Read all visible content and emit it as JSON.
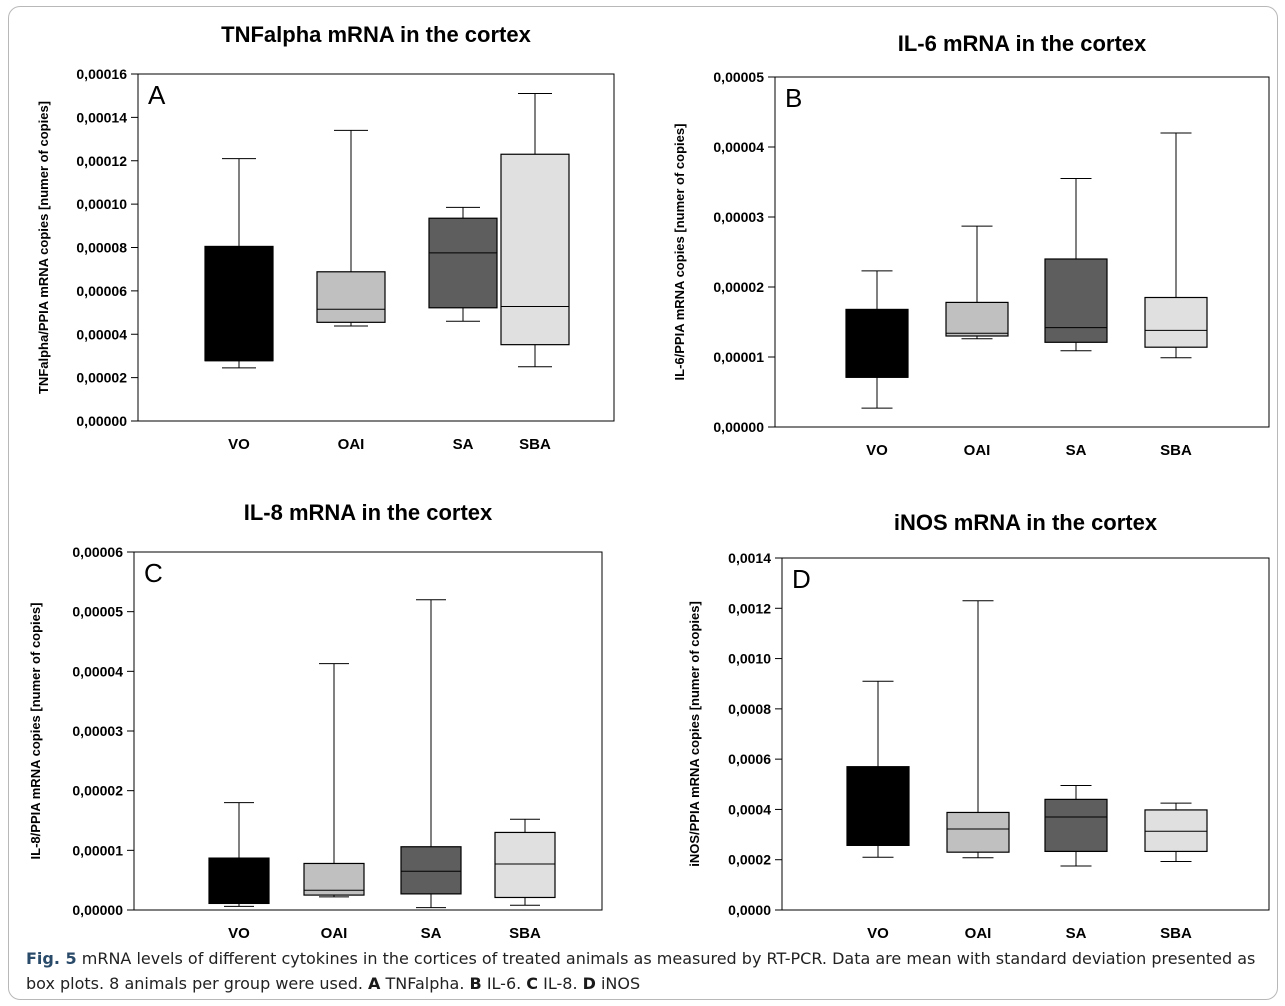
{
  "figure": {
    "caption": {
      "fig_label": "Fig. 5",
      "text_1": " mRNA levels of different cytokines in the cortices of treated animals as measured by RT-PCR. Data are mean with standard deviation presented as box plots. 8 animals per group were used. ",
      "label_a": "A",
      "text_a": " TNFalpha. ",
      "label_b": "B",
      "text_b": " IL-6. ",
      "label_c": "C",
      "text_c": " IL-8. ",
      "label_d": "D",
      "text_d": " iNOS"
    }
  },
  "colors": {
    "VO": "#000000",
    "OAI": "#c0c0c0",
    "SA": "#5e5e5e",
    "SBA": "#e0e0e0"
  },
  "chart_data": [
    {
      "type": "box",
      "panel": "A",
      "title": "TNFalpha mRNA in the cortex",
      "ylabel": "TNFalpha/PPIA mRNA copies [numer of copies]",
      "xlabel": "",
      "categories": [
        "VO",
        "OAI",
        "SA",
        "SBA"
      ],
      "ylim": [
        0,
        0.00016
      ],
      "yticks": [
        "0,00000",
        "0,00002",
        "0,00004",
        "0,00006",
        "0,00008",
        "0,00010",
        "0,00012",
        "0,00014",
        "0,00016"
      ],
      "ytick_values": [
        0,
        2e-05,
        4e-05,
        6e-05,
        8e-05,
        0.0001,
        0.00012,
        0.00014,
        0.00016
      ],
      "boxes": [
        {
          "category": "VO",
          "min": 2.45e-05,
          "q1": 2.78e-05,
          "median": 2.78e-05,
          "q3": 8.05e-05,
          "max": 0.000121
        },
        {
          "category": "OAI",
          "min": 4.38e-05,
          "q1": 4.55e-05,
          "median": 5.15e-05,
          "q3": 6.88e-05,
          "max": 0.000134
        },
        {
          "category": "SA",
          "min": 4.6e-05,
          "q1": 5.22e-05,
          "median": 7.75e-05,
          "q3": 9.35e-05,
          "max": 9.85e-05
        },
        {
          "category": "SBA",
          "min": 2.5e-05,
          "q1": 3.52e-05,
          "median": 5.28e-05,
          "q3": 0.000123,
          "max": 0.000151
        }
      ],
      "grid": false,
      "legend": "none"
    },
    {
      "type": "box",
      "panel": "B",
      "title": "IL-6 mRNA in the cortex",
      "ylabel": "IL-6/PPIA mRNA copies [numer of copies]",
      "xlabel": "",
      "categories": [
        "VO",
        "OAI",
        "SA",
        "SBA"
      ],
      "ylim": [
        0,
        5e-05
      ],
      "yticks": [
        "0,00000",
        "0,00001",
        "0,00002",
        "0,00003",
        "0,00004",
        "0,00005"
      ],
      "ytick_values": [
        0,
        1e-05,
        2e-05,
        3e-05,
        4e-05,
        5e-05
      ],
      "boxes": [
        {
          "category": "VO",
          "min": 2.7e-06,
          "q1": 7.1e-06,
          "median": 7.1e-06,
          "q3": 1.68e-05,
          "max": 2.23e-05
        },
        {
          "category": "OAI",
          "min": 1.26e-05,
          "q1": 1.3e-05,
          "median": 1.34e-05,
          "q3": 1.78e-05,
          "max": 2.87e-05
        },
        {
          "category": "SA",
          "min": 1.09e-05,
          "q1": 1.21e-05,
          "median": 1.42e-05,
          "q3": 2.4e-05,
          "max": 3.55e-05
        },
        {
          "category": "SBA",
          "min": 9.9e-06,
          "q1": 1.14e-05,
          "median": 1.38e-05,
          "q3": 1.85e-05,
          "max": 4.2e-05
        }
      ],
      "grid": false,
      "legend": "none"
    },
    {
      "type": "box",
      "panel": "C",
      "title": "IL-8 mRNA in the cortex",
      "ylabel": "IL-8/PPIA mRNA copies [numer of copies]",
      "xlabel": "",
      "categories": [
        "VO",
        "OAI",
        "SA",
        "SBA"
      ],
      "ylim": [
        0,
        6e-05
      ],
      "yticks": [
        "0,00000",
        "0,00001",
        "0,00002",
        "0,00003",
        "0,00004",
        "0,00005",
        "0,00006"
      ],
      "ytick_values": [
        0,
        1e-05,
        2e-05,
        3e-05,
        4e-05,
        5e-05,
        6e-05
      ],
      "boxes": [
        {
          "category": "VO",
          "min": 6e-07,
          "q1": 1.1e-06,
          "median": 1.1e-06,
          "q3": 8.7e-06,
          "max": 1.8e-05
        },
        {
          "category": "OAI",
          "min": 2.2e-06,
          "q1": 2.5e-06,
          "median": 3.3e-06,
          "q3": 7.8e-06,
          "max": 4.13e-05
        },
        {
          "category": "SA",
          "min": 4e-07,
          "q1": 2.7e-06,
          "median": 6.5e-06,
          "q3": 1.06e-05,
          "max": 5.2e-05
        },
        {
          "category": "SBA",
          "min": 8e-07,
          "q1": 2.1e-06,
          "median": 7.7e-06,
          "q3": 1.3e-05,
          "max": 1.52e-05
        }
      ],
      "grid": false,
      "legend": "none"
    },
    {
      "type": "box",
      "panel": "D",
      "title": "iNOS mRNA in the cortex",
      "ylabel": "iNOS/PPIA mRNA copies [numer of copies]",
      "xlabel": "",
      "categories": [
        "VO",
        "OAI",
        "SA",
        "SBA"
      ],
      "ylim": [
        0,
        0.0014
      ],
      "yticks": [
        "0,0000",
        "0,0002",
        "0,0004",
        "0,0006",
        "0,0008",
        "0,0010",
        "0,0012",
        "0,0014"
      ],
      "ytick_values": [
        0,
        0.0002,
        0.0004,
        0.0006,
        0.0008,
        0.001,
        0.0012,
        0.0014
      ],
      "boxes": [
        {
          "category": "VO",
          "min": 0.00021,
          "q1": 0.000257,
          "median": 0.000257,
          "q3": 0.00057,
          "max": 0.00091
        },
        {
          "category": "OAI",
          "min": 0.000208,
          "q1": 0.00023,
          "median": 0.000322,
          "q3": 0.000388,
          "max": 0.00123
        },
        {
          "category": "SA",
          "min": 0.000175,
          "q1": 0.000233,
          "median": 0.00037,
          "q3": 0.00044,
          "max": 0.000495
        },
        {
          "category": "SBA",
          "min": 0.000193,
          "q1": 0.000233,
          "median": 0.000313,
          "q3": 0.000398,
          "max": 0.000425
        }
      ],
      "grid": false,
      "legend": "none"
    }
  ]
}
